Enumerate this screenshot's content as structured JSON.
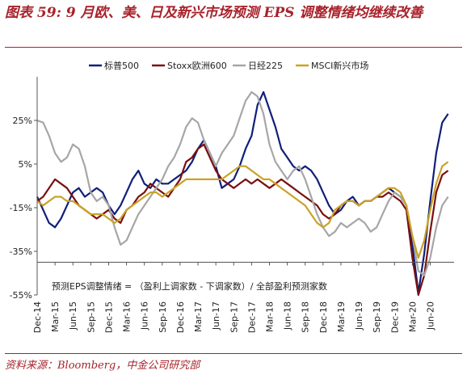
{
  "title": "图表 59: 9 月欧、美、日及新兴市场预测 EPS 调整情绪均继续改善",
  "source": "资料来源：Bloomberg，中金公司研究部",
  "chart_data": {
    "type": "line",
    "note": "预测EPS调整情绪 = （盈利上调家数 - 下调家数）/ 全部盈利预测家数",
    "y_ticks": [
      "25%",
      "5%",
      "-15%",
      "-35%",
      "-55%"
    ],
    "y_tick_values": [
      25,
      5,
      -15,
      -35,
      -55
    ],
    "ylim": [
      -55,
      45
    ],
    "x_ticks": [
      "Dec-14",
      "Mar-15",
      "Jun-15",
      "Sep-15",
      "Dec-15",
      "Mar-16",
      "Jun-16",
      "Sep-16",
      "Dec-16",
      "Mar-17",
      "Jun-17",
      "Sep-17",
      "Dec-17",
      "Mar-18",
      "Jun-18",
      "Sep-18",
      "Dec-18",
      "Mar-19",
      "Jun-19",
      "Sep-19",
      "Dec-19",
      "Mar-20",
      "Jun-20"
    ],
    "grid": false,
    "legend_position": "top",
    "series": [
      {
        "name": "标普500",
        "color": "#0f1f7a",
        "points": [
          [
            "2014-12",
            -10
          ],
          [
            "2015-01",
            -16
          ],
          [
            "2015-02",
            -22
          ],
          [
            "2015-03",
            -24
          ],
          [
            "2015-04",
            -20
          ],
          [
            "2015-05",
            -14
          ],
          [
            "2015-06",
            -8
          ],
          [
            "2015-07",
            -6
          ],
          [
            "2015-08",
            -10
          ],
          [
            "2015-09",
            -8
          ],
          [
            "2015-10",
            -6
          ],
          [
            "2015-11",
            -8
          ],
          [
            "2015-12",
            -14
          ],
          [
            "2016-01",
            -18
          ],
          [
            "2016-02",
            -14
          ],
          [
            "2016-03",
            -8
          ],
          [
            "2016-04",
            -2
          ],
          [
            "2016-05",
            2
          ],
          [
            "2016-06",
            -4
          ],
          [
            "2016-07",
            -6
          ],
          [
            "2016-08",
            -2
          ],
          [
            "2016-09",
            -4
          ],
          [
            "2016-10",
            -4
          ],
          [
            "2016-11",
            -2
          ],
          [
            "2016-12",
            0
          ],
          [
            "2017-01",
            2
          ],
          [
            "2017-02",
            6
          ],
          [
            "2017-03",
            12
          ],
          [
            "2017-04",
            16
          ],
          [
            "2017-05",
            10
          ],
          [
            "2017-06",
            4
          ],
          [
            "2017-07",
            -6
          ],
          [
            "2017-08",
            -4
          ],
          [
            "2017-09",
            -2
          ],
          [
            "2017-10",
            4
          ],
          [
            "2017-11",
            12
          ],
          [
            "2017-12",
            18
          ],
          [
            "2018-01",
            32
          ],
          [
            "2018-02",
            38
          ],
          [
            "2018-03",
            30
          ],
          [
            "2018-04",
            22
          ],
          [
            "2018-05",
            12
          ],
          [
            "2018-06",
            8
          ],
          [
            "2018-07",
            4
          ],
          [
            "2018-08",
            2
          ],
          [
            "2018-09",
            4
          ],
          [
            "2018-10",
            2
          ],
          [
            "2018-11",
            -2
          ],
          [
            "2018-12",
            -8
          ],
          [
            "2019-01",
            -14
          ],
          [
            "2019-02",
            -18
          ],
          [
            "2019-03",
            -16
          ],
          [
            "2019-04",
            -12
          ],
          [
            "2019-05",
            -10
          ],
          [
            "2019-06",
            -14
          ],
          [
            "2019-07",
            -12
          ],
          [
            "2019-08",
            -12
          ],
          [
            "2019-09",
            -10
          ],
          [
            "2019-10",
            -8
          ],
          [
            "2019-11",
            -6
          ],
          [
            "2019-12",
            -8
          ],
          [
            "2020-01",
            -10
          ],
          [
            "2020-02",
            -14
          ],
          [
            "2020-03",
            -32
          ],
          [
            "2020-04",
            -54
          ],
          [
            "2020-05",
            -36
          ],
          [
            "2020-06",
            -12
          ],
          [
            "2020-07",
            10
          ],
          [
            "2020-08",
            24
          ],
          [
            "2020-09",
            28
          ]
        ]
      },
      {
        "name": "Stoxx欧洲600",
        "color": "#7a0f0f",
        "points": [
          [
            "2014-12",
            -12
          ],
          [
            "2015-01",
            -10
          ],
          [
            "2015-02",
            -6
          ],
          [
            "2015-03",
            -2
          ],
          [
            "2015-04",
            -4
          ],
          [
            "2015-05",
            -6
          ],
          [
            "2015-06",
            -10
          ],
          [
            "2015-07",
            -14
          ],
          [
            "2015-08",
            -16
          ],
          [
            "2015-09",
            -18
          ],
          [
            "2015-10",
            -20
          ],
          [
            "2015-11",
            -18
          ],
          [
            "2015-12",
            -16
          ],
          [
            "2016-01",
            -20
          ],
          [
            "2016-02",
            -22
          ],
          [
            "2016-03",
            -16
          ],
          [
            "2016-04",
            -14
          ],
          [
            "2016-05",
            -10
          ],
          [
            "2016-06",
            -8
          ],
          [
            "2016-07",
            -4
          ],
          [
            "2016-08",
            -6
          ],
          [
            "2016-09",
            -8
          ],
          [
            "2016-10",
            -10
          ],
          [
            "2016-11",
            -6
          ],
          [
            "2016-12",
            -2
          ],
          [
            "2017-01",
            6
          ],
          [
            "2017-02",
            8
          ],
          [
            "2017-03",
            12
          ],
          [
            "2017-04",
            14
          ],
          [
            "2017-05",
            8
          ],
          [
            "2017-06",
            2
          ],
          [
            "2017-07",
            -2
          ],
          [
            "2017-08",
            -4
          ],
          [
            "2017-09",
            -6
          ],
          [
            "2017-10",
            -4
          ],
          [
            "2017-11",
            -2
          ],
          [
            "2017-12",
            -4
          ],
          [
            "2018-01",
            -2
          ],
          [
            "2018-02",
            -4
          ],
          [
            "2018-03",
            -6
          ],
          [
            "2018-04",
            -4
          ],
          [
            "2018-05",
            -2
          ],
          [
            "2018-06",
            -4
          ],
          [
            "2018-07",
            -6
          ],
          [
            "2018-08",
            -8
          ],
          [
            "2018-09",
            -10
          ],
          [
            "2018-10",
            -12
          ],
          [
            "2018-11",
            -14
          ],
          [
            "2018-12",
            -18
          ],
          [
            "2019-01",
            -20
          ],
          [
            "2019-02",
            -18
          ],
          [
            "2019-03",
            -14
          ],
          [
            "2019-04",
            -12
          ],
          [
            "2019-05",
            -12
          ],
          [
            "2019-06",
            -14
          ],
          [
            "2019-07",
            -12
          ],
          [
            "2019-08",
            -12
          ],
          [
            "2019-09",
            -10
          ],
          [
            "2019-10",
            -10
          ],
          [
            "2019-11",
            -8
          ],
          [
            "2019-12",
            -10
          ],
          [
            "2020-01",
            -12
          ],
          [
            "2020-02",
            -16
          ],
          [
            "2020-03",
            -38
          ],
          [
            "2020-04",
            -55
          ],
          [
            "2020-05",
            -46
          ],
          [
            "2020-06",
            -26
          ],
          [
            "2020-07",
            -8
          ],
          [
            "2020-08",
            0
          ],
          [
            "2020-09",
            2
          ]
        ]
      },
      {
        "name": "日经225",
        "color": "#a6a6a6",
        "points": [
          [
            "2014-12",
            25
          ],
          [
            "2015-01",
            24
          ],
          [
            "2015-02",
            18
          ],
          [
            "2015-03",
            10
          ],
          [
            "2015-04",
            6
          ],
          [
            "2015-05",
            8
          ],
          [
            "2015-06",
            14
          ],
          [
            "2015-07",
            12
          ],
          [
            "2015-08",
            4
          ],
          [
            "2015-09",
            -8
          ],
          [
            "2015-10",
            -12
          ],
          [
            "2015-11",
            -10
          ],
          [
            "2015-12",
            -14
          ],
          [
            "2016-01",
            -24
          ],
          [
            "2016-02",
            -32
          ],
          [
            "2016-03",
            -30
          ],
          [
            "2016-04",
            -24
          ],
          [
            "2016-05",
            -18
          ],
          [
            "2016-06",
            -14
          ],
          [
            "2016-07",
            -10
          ],
          [
            "2016-08",
            -6
          ],
          [
            "2016-09",
            -2
          ],
          [
            "2016-10",
            4
          ],
          [
            "2016-11",
            8
          ],
          [
            "2016-12",
            14
          ],
          [
            "2017-01",
            22
          ],
          [
            "2017-02",
            26
          ],
          [
            "2017-03",
            24
          ],
          [
            "2017-04",
            16
          ],
          [
            "2017-05",
            10
          ],
          [
            "2017-06",
            4
          ],
          [
            "2017-07",
            10
          ],
          [
            "2017-08",
            14
          ],
          [
            "2017-09",
            18
          ],
          [
            "2017-10",
            26
          ],
          [
            "2017-11",
            34
          ],
          [
            "2017-12",
            38
          ],
          [
            "2018-01",
            36
          ],
          [
            "2018-02",
            28
          ],
          [
            "2018-03",
            14
          ],
          [
            "2018-04",
            6
          ],
          [
            "2018-05",
            2
          ],
          [
            "2018-06",
            -2
          ],
          [
            "2018-07",
            2
          ],
          [
            "2018-08",
            4
          ],
          [
            "2018-09",
            -2
          ],
          [
            "2018-10",
            -10
          ],
          [
            "2018-11",
            -18
          ],
          [
            "2018-12",
            -24
          ],
          [
            "2019-01",
            -28
          ],
          [
            "2019-02",
            -26
          ],
          [
            "2019-03",
            -22
          ],
          [
            "2019-04",
            -24
          ],
          [
            "2019-05",
            -22
          ],
          [
            "2019-06",
            -20
          ],
          [
            "2019-07",
            -22
          ],
          [
            "2019-08",
            -26
          ],
          [
            "2019-09",
            -24
          ],
          [
            "2019-10",
            -18
          ],
          [
            "2019-11",
            -12
          ],
          [
            "2019-12",
            -8
          ],
          [
            "2020-01",
            -10
          ],
          [
            "2020-02",
            -14
          ],
          [
            "2020-03",
            -28
          ],
          [
            "2020-04",
            -44
          ],
          [
            "2020-05",
            -46
          ],
          [
            "2020-06",
            -38
          ],
          [
            "2020-07",
            -24
          ],
          [
            "2020-08",
            -14
          ],
          [
            "2020-09",
            -10
          ]
        ]
      },
      {
        "name": "MSCI新兴市场",
        "color": "#c9a227",
        "points": [
          [
            "2014-12",
            -12
          ],
          [
            "2015-01",
            -14
          ],
          [
            "2015-02",
            -12
          ],
          [
            "2015-03",
            -10
          ],
          [
            "2015-04",
            -10
          ],
          [
            "2015-05",
            -12
          ],
          [
            "2015-06",
            -12
          ],
          [
            "2015-07",
            -14
          ],
          [
            "2015-08",
            -16
          ],
          [
            "2015-09",
            -18
          ],
          [
            "2015-10",
            -18
          ],
          [
            "2015-11",
            -18
          ],
          [
            "2015-12",
            -20
          ],
          [
            "2016-01",
            -22
          ],
          [
            "2016-02",
            -20
          ],
          [
            "2016-03",
            -16
          ],
          [
            "2016-04",
            -14
          ],
          [
            "2016-05",
            -12
          ],
          [
            "2016-06",
            -10
          ],
          [
            "2016-07",
            -8
          ],
          [
            "2016-08",
            -8
          ],
          [
            "2016-09",
            -10
          ],
          [
            "2016-10",
            -8
          ],
          [
            "2016-11",
            -6
          ],
          [
            "2016-12",
            -4
          ],
          [
            "2017-01",
            -2
          ],
          [
            "2017-02",
            -2
          ],
          [
            "2017-03",
            -2
          ],
          [
            "2017-04",
            -2
          ],
          [
            "2017-05",
            -2
          ],
          [
            "2017-06",
            -2
          ],
          [
            "2017-07",
            -2
          ],
          [
            "2017-08",
            0
          ],
          [
            "2017-09",
            2
          ],
          [
            "2017-10",
            4
          ],
          [
            "2017-11",
            4
          ],
          [
            "2017-12",
            2
          ],
          [
            "2018-01",
            0
          ],
          [
            "2018-02",
            -2
          ],
          [
            "2018-03",
            -2
          ],
          [
            "2018-04",
            -4
          ],
          [
            "2018-05",
            -6
          ],
          [
            "2018-06",
            -8
          ],
          [
            "2018-07",
            -10
          ],
          [
            "2018-08",
            -12
          ],
          [
            "2018-09",
            -14
          ],
          [
            "2018-10",
            -18
          ],
          [
            "2018-11",
            -22
          ],
          [
            "2018-12",
            -24
          ],
          [
            "2019-01",
            -22
          ],
          [
            "2019-02",
            -16
          ],
          [
            "2019-03",
            -14
          ],
          [
            "2019-04",
            -12
          ],
          [
            "2019-05",
            -12
          ],
          [
            "2019-06",
            -14
          ],
          [
            "2019-07",
            -12
          ],
          [
            "2019-08",
            -12
          ],
          [
            "2019-09",
            -10
          ],
          [
            "2019-10",
            -8
          ],
          [
            "2019-11",
            -6
          ],
          [
            "2019-12",
            -6
          ],
          [
            "2020-01",
            -8
          ],
          [
            "2020-02",
            -14
          ],
          [
            "2020-03",
            -28
          ],
          [
            "2020-04",
            -38
          ],
          [
            "2020-05",
            -30
          ],
          [
            "2020-06",
            -16
          ],
          [
            "2020-07",
            -4
          ],
          [
            "2020-08",
            4
          ],
          [
            "2020-09",
            6
          ]
        ]
      }
    ]
  }
}
